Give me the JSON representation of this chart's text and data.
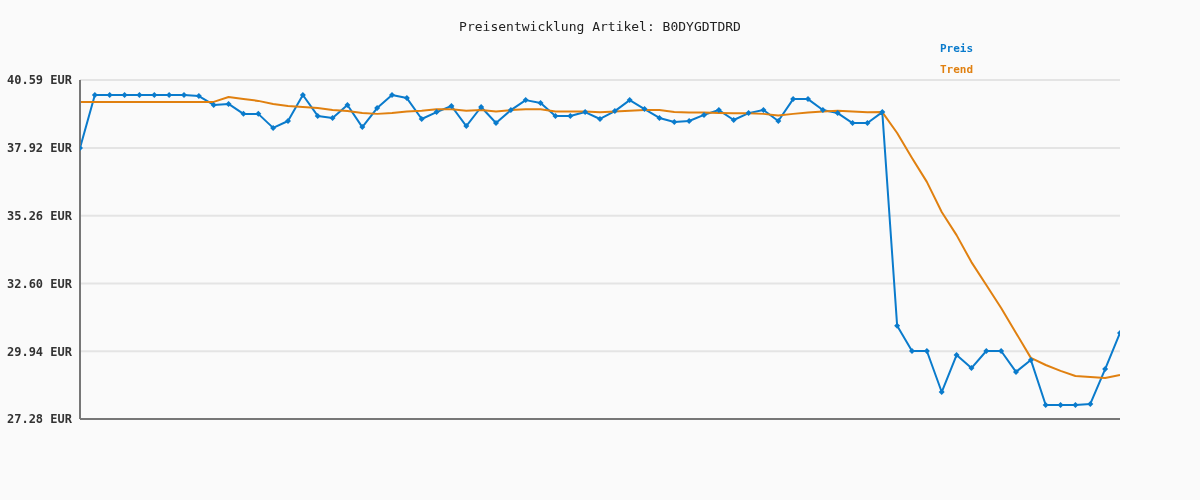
{
  "chart_data": {
    "type": "line",
    "title": "Preisentwicklung Artikel: B0DYGDTDRD",
    "categories": [
      null,
      null,
      null,
      null,
      null,
      null,
      null,
      null,
      null,
      null,
      null,
      null,
      null,
      null,
      null,
      null,
      null,
      null,
      null,
      null,
      null,
      null,
      null,
      null,
      null,
      null,
      null,
      null,
      null,
      null,
      null,
      null,
      null,
      null,
      null,
      null,
      null,
      null,
      null,
      null,
      null,
      null,
      null,
      null,
      null,
      null,
      null,
      null,
      null,
      null,
      null,
      null,
      null,
      null,
      null,
      null,
      null,
      null,
      null,
      null,
      null,
      null,
      null,
      null,
      null,
      null,
      null,
      null,
      null,
      null,
      null
    ],
    "series": [
      {
        "name": "Preis",
        "color": "#0a7bcc",
        "marker": "diamond",
        "values": [
          37.92,
          40.0,
          40.0,
          40.0,
          40.0,
          40.0,
          40.0,
          40.0,
          39.96,
          39.61,
          39.65,
          39.26,
          39.26,
          38.71,
          38.98,
          40.0,
          39.18,
          39.1,
          39.61,
          38.74,
          39.49,
          40.0,
          39.88,
          39.06,
          39.33,
          39.57,
          38.78,
          39.53,
          38.9,
          39.41,
          39.8,
          39.69,
          39.18,
          39.18,
          39.33,
          39.06,
          39.37,
          39.8,
          39.45,
          39.1,
          38.94,
          38.98,
          39.22,
          39.41,
          39.02,
          39.29,
          39.41,
          38.98,
          39.84,
          39.84,
          39.41,
          39.29,
          38.9,
          38.9,
          39.33,
          30.94,
          29.95,
          29.95,
          28.34,
          29.79,
          29.28,
          29.95,
          29.95,
          29.13,
          29.6,
          27.83,
          27.83,
          27.83,
          27.87,
          29.24,
          30.66
        ]
      },
      {
        "name": "Trend",
        "color": "#e08010",
        "marker": "none",
        "values": [
          39.73,
          39.73,
          39.73,
          39.73,
          39.73,
          39.73,
          39.73,
          39.73,
          39.73,
          39.73,
          39.92,
          39.84,
          39.77,
          39.65,
          39.57,
          39.53,
          39.49,
          39.41,
          39.37,
          39.29,
          39.26,
          39.29,
          39.35,
          39.38,
          39.44,
          39.44,
          39.38,
          39.41,
          39.35,
          39.41,
          39.44,
          39.44,
          39.35,
          39.35,
          39.35,
          39.32,
          39.35,
          39.38,
          39.41,
          39.41,
          39.33,
          39.31,
          39.31,
          39.29,
          39.28,
          39.28,
          39.26,
          39.2,
          39.26,
          39.31,
          39.35,
          39.38,
          39.35,
          39.32,
          39.33,
          38.51,
          37.53,
          36.59,
          35.41,
          34.5,
          33.44,
          32.54,
          31.64,
          30.66,
          29.68,
          29.4,
          29.17,
          28.97,
          28.93,
          28.89,
          29.01
        ]
      }
    ],
    "ylim": [
      27.28,
      40.59
    ],
    "yticks": [
      {
        "value": 27.28,
        "label": "27.28 EUR"
      },
      {
        "value": 29.94,
        "label": "29.94 EUR"
      },
      {
        "value": 32.6,
        "label": "32.60 EUR"
      },
      {
        "value": 35.26,
        "label": "35.26 EUR"
      },
      {
        "value": 37.92,
        "label": "37.92 EUR"
      },
      {
        "value": 40.59,
        "label": "40.59 EUR"
      }
    ],
    "grid": "y",
    "legend": "top right",
    "tick_labels": "y",
    "line_style": "solid"
  }
}
